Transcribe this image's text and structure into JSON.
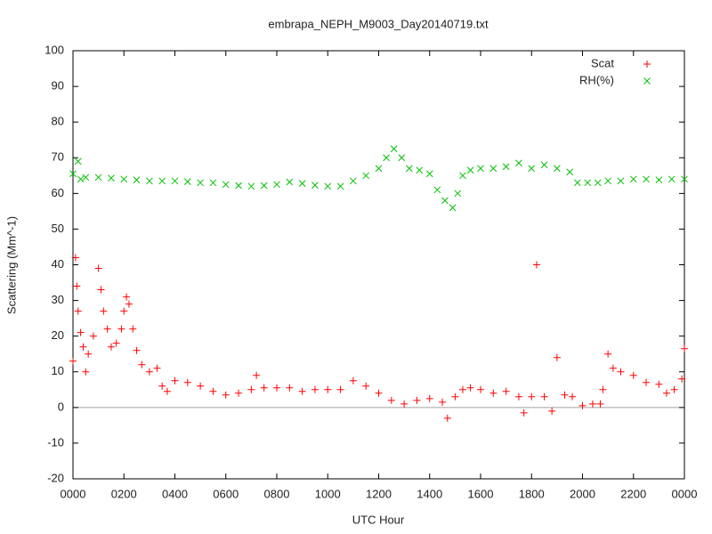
{
  "chart_data": {
    "type": "scatter",
    "title": "embrapa_NEPH_M9003_Day20140719.txt",
    "x_label": "UTC Hour",
    "y_label": "Scattering (Mm^-1)",
    "xlim": [
      0,
      24
    ],
    "ylim": [
      -20,
      100
    ],
    "xticks": [
      {
        "value": 0,
        "label": "0000"
      },
      {
        "value": 2,
        "label": "0200"
      },
      {
        "value": 4,
        "label": "0400"
      },
      {
        "value": 6,
        "label": "0600"
      },
      {
        "value": 8,
        "label": "0800"
      },
      {
        "value": 10,
        "label": "1000"
      },
      {
        "value": 12,
        "label": "1200"
      },
      {
        "value": 14,
        "label": "1400"
      },
      {
        "value": 16,
        "label": "1600"
      },
      {
        "value": 18,
        "label": "1800"
      },
      {
        "value": 20,
        "label": "2000"
      },
      {
        "value": 22,
        "label": "2200"
      },
      {
        "value": 24,
        "label": "0000"
      }
    ],
    "yticks": [
      -20,
      -10,
      0,
      10,
      20,
      30,
      40,
      50,
      60,
      70,
      80,
      90,
      100
    ],
    "legend": "top-right",
    "series": [
      {
        "name": "Scat",
        "color": "#ff0000",
        "marker": "plus",
        "x": [
          0,
          0.1,
          0.15,
          0.2,
          0.3,
          0.4,
          0.5,
          0.6,
          0.8,
          1.0,
          1.1,
          1.2,
          1.35,
          1.5,
          1.7,
          1.9,
          2.0,
          2.1,
          2.2,
          2.35,
          2.5,
          2.7,
          3,
          3.3,
          3.5,
          3.7,
          4,
          4.5,
          5,
          5.5,
          6,
          6.5,
          7,
          7.2,
          7.5,
          8,
          8.5,
          9,
          9.5,
          10,
          10.5,
          11,
          11.5,
          12,
          12.5,
          13,
          13.5,
          14,
          14.5,
          14.7,
          15,
          15.3,
          15.6,
          16,
          16.5,
          17,
          17.5,
          17.7,
          18,
          18.2,
          18.5,
          18.8,
          19,
          19.3,
          19.6,
          20,
          20.4,
          20.7,
          20.8,
          21,
          21.2,
          21.5,
          22,
          22.5,
          23,
          23.3,
          23.6,
          23.9,
          24
        ],
        "values": [
          13,
          42,
          34,
          27,
          21,
          17,
          10,
          15,
          20,
          39,
          33,
          27,
          22,
          17,
          18,
          22,
          27,
          31,
          29,
          22,
          16,
          12,
          10,
          11,
          6,
          4.5,
          7.5,
          7,
          6,
          4.5,
          3.5,
          4,
          5,
          9,
          5.5,
          5.5,
          5.5,
          4.5,
          5,
          5,
          5,
          7.5,
          6,
          4,
          2,
          1,
          2,
          2.5,
          1.5,
          -3,
          3,
          5,
          5.5,
          5,
          4,
          4.5,
          3,
          -1.5,
          3,
          40,
          3,
          -1,
          14,
          3.5,
          3,
          0.5,
          1,
          1,
          5,
          15,
          11,
          10,
          9,
          7,
          6.5,
          4,
          5,
          8,
          16.5
        ]
      },
      {
        "name": "RH(%)",
        "color": "#00c000",
        "marker": "cross",
        "x": [
          0,
          0.2,
          0.3,
          0.5,
          1,
          1.5,
          2,
          2.5,
          3,
          3.5,
          4,
          4.5,
          5,
          5.5,
          6,
          6.5,
          7,
          7.5,
          8,
          8.5,
          9,
          9.5,
          10,
          10.5,
          11,
          11.5,
          12,
          12.3,
          12.6,
          12.9,
          13.2,
          13.6,
          14,
          14.3,
          14.6,
          14.9,
          15.1,
          15.3,
          15.6,
          16,
          16.5,
          17,
          17.5,
          18,
          18.5,
          19,
          19.5,
          19.8,
          20.2,
          20.6,
          21,
          21.5,
          22,
          22.5,
          23,
          23.5,
          24
        ],
        "values": [
          65.5,
          69,
          64,
          64.5,
          64.5,
          64.3,
          64,
          63.8,
          63.5,
          63.5,
          63.5,
          63.3,
          63,
          63,
          62.5,
          62.2,
          62,
          62.2,
          62.5,
          63.2,
          62.8,
          62.3,
          62,
          62,
          63.5,
          65,
          67,
          70,
          72.5,
          70,
          67,
          66.5,
          65.5,
          61,
          58,
          56,
          60,
          65,
          66.5,
          67,
          67,
          67.5,
          68.5,
          67,
          68,
          67,
          66,
          63,
          63,
          63,
          63.5,
          63.5,
          64,
          64,
          63.8,
          64,
          64
        ]
      }
    ]
  }
}
